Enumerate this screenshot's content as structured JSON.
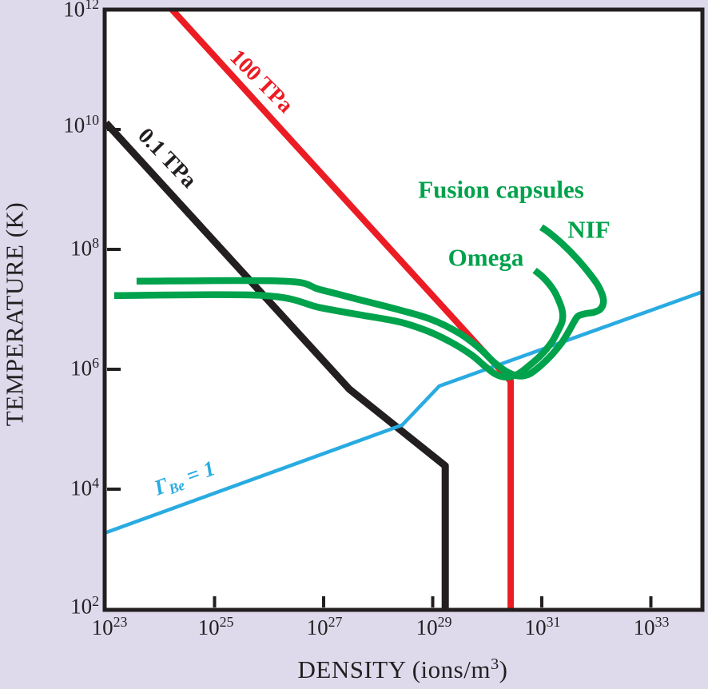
{
  "figure": {
    "background_color": "#dedaec",
    "plot_background": "#ffffff",
    "frame_color": "#231f20"
  },
  "axes": {
    "x": {
      "title_parts": {
        "pre": "DENSITY (ions/m",
        "sup": "3",
        "post": ")"
      },
      "ticks": [
        {
          "base": "10",
          "exp": "23"
        },
        {
          "base": "10",
          "exp": "25"
        },
        {
          "base": "10",
          "exp": "27"
        },
        {
          "base": "10",
          "exp": "29"
        },
        {
          "base": "10",
          "exp": "31"
        },
        {
          "base": "10",
          "exp": "33"
        }
      ]
    },
    "y": {
      "title": "TEMPERATURE (K)",
      "ticks": [
        {
          "base": "10",
          "exp": "12"
        },
        {
          "base": "10",
          "exp": "10"
        },
        {
          "base": "10",
          "exp": "8"
        },
        {
          "base": "10",
          "exp": "6"
        },
        {
          "base": "10",
          "exp": "4"
        },
        {
          "base": "10",
          "exp": "2"
        }
      ]
    }
  },
  "labels": {
    "isobar_100tpa": "100 TPa",
    "isobar_01tpa": "0.1 TPa",
    "gamma_parts": {
      "symbol": "Γ",
      "sub": "Be",
      "rest": " = 1"
    },
    "fusion_capsules": "Fusion capsules",
    "nif": "NIF",
    "omega": "Omega"
  },
  "chart_data": {
    "type": "line",
    "xlabel": "DENSITY (ions/m³)",
    "ylabel": "TEMPERATURE (K)",
    "xscale": "log",
    "yscale": "log",
    "xlim_log10": [
      23,
      33.95
    ],
    "ylim_log10": [
      2,
      12
    ],
    "grid": false,
    "legend": "inline-labels",
    "series": [
      {
        "name": "100 TPa isobar",
        "color": "#ec1c24",
        "width": 8,
        "smooth": false,
        "points_log10": [
          [
            24.22,
            12.0
          ],
          [
            30.43,
            5.8
          ],
          [
            30.43,
            2.0
          ]
        ]
      },
      {
        "name": "0.1 TPa isobar",
        "color": "#231f20",
        "width": 9,
        "smooth": false,
        "points_log10": [
          [
            23.01,
            10.11
          ],
          [
            27.47,
            5.67
          ],
          [
            29.23,
            4.39
          ],
          [
            29.23,
            2.0
          ]
        ]
      },
      {
        "name": "Gamma_Be = 1 coupling boundary",
        "color": "#29abe2",
        "width": 4.5,
        "smooth": false,
        "points_log10": [
          [
            22.99,
            3.27
          ],
          [
            28.44,
            5.07
          ],
          [
            29.12,
            5.72
          ],
          [
            33.94,
            7.29
          ]
        ]
      },
      {
        "name": "NIF fusion capsule trajectory",
        "color": "#00a24c",
        "width": 8.5,
        "smooth": true,
        "points_log10": [
          [
            23.57,
            7.47
          ],
          [
            26.27,
            7.47
          ],
          [
            26.93,
            7.33
          ],
          [
            27.66,
            7.16
          ],
          [
            28.39,
            6.99
          ],
          [
            28.98,
            6.83
          ],
          [
            29.49,
            6.6
          ],
          [
            29.86,
            6.35
          ],
          [
            30.12,
            6.12
          ],
          [
            30.34,
            5.97
          ],
          [
            30.56,
            5.89
          ],
          [
            30.77,
            5.92
          ],
          [
            30.99,
            6.07
          ],
          [
            31.19,
            6.25
          ],
          [
            31.37,
            6.45
          ],
          [
            31.5,
            6.64
          ],
          [
            31.59,
            6.79
          ],
          [
            31.67,
            6.89
          ],
          [
            31.81,
            6.93
          ],
          [
            31.95,
            6.95
          ],
          [
            32.07,
            7.0
          ],
          [
            32.13,
            7.11
          ],
          [
            32.11,
            7.24
          ],
          [
            32.03,
            7.4
          ],
          [
            31.88,
            7.59
          ],
          [
            31.66,
            7.83
          ],
          [
            31.38,
            8.09
          ],
          [
            31.12,
            8.29
          ],
          [
            30.99,
            8.37
          ]
        ]
      },
      {
        "name": "Omega fusion capsule trajectory",
        "color": "#00a24c",
        "width": 8.5,
        "smooth": true,
        "points_log10": [
          [
            23.16,
            7.23
          ],
          [
            25.9,
            7.23
          ],
          [
            26.93,
            7.03
          ],
          [
            27.66,
            6.91
          ],
          [
            28.39,
            6.79
          ],
          [
            28.9,
            6.64
          ],
          [
            29.34,
            6.45
          ],
          [
            29.71,
            6.24
          ],
          [
            29.96,
            6.05
          ],
          [
            30.15,
            5.92
          ],
          [
            30.34,
            5.87
          ],
          [
            30.56,
            5.92
          ],
          [
            30.78,
            6.07
          ],
          [
            30.99,
            6.24
          ],
          [
            31.18,
            6.45
          ],
          [
            31.29,
            6.63
          ],
          [
            31.37,
            6.79
          ],
          [
            31.38,
            6.95
          ],
          [
            31.32,
            7.13
          ],
          [
            31.21,
            7.33
          ],
          [
            31.04,
            7.52
          ],
          [
            30.87,
            7.65
          ]
        ]
      }
    ]
  }
}
